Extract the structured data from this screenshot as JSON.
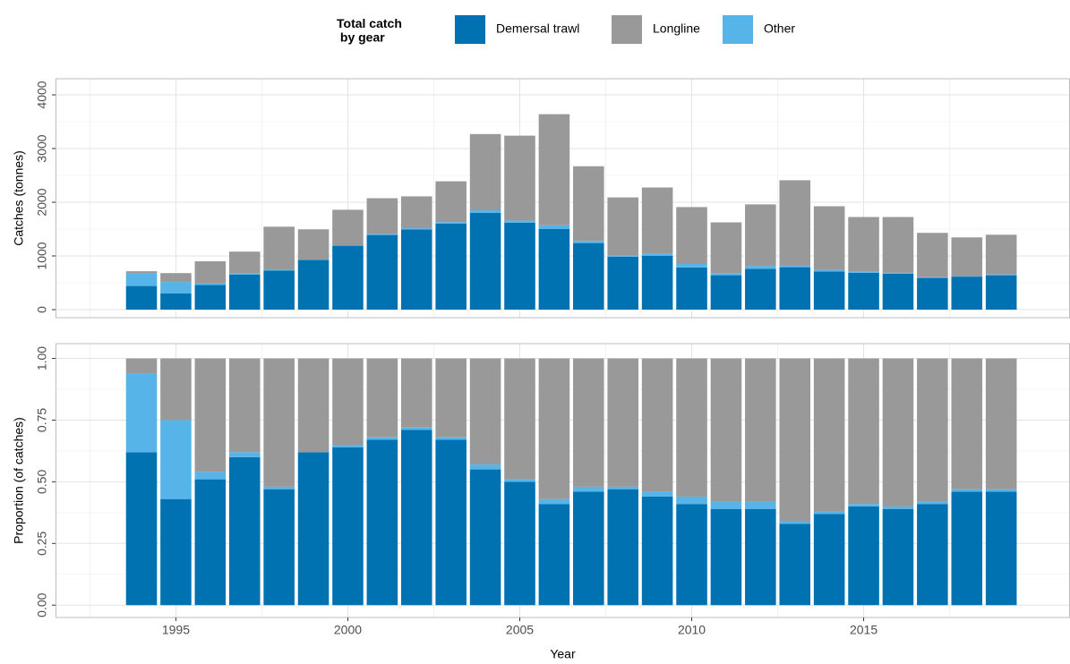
{
  "chart_data": [
    {
      "type": "bar",
      "stacked": true,
      "legend_title": "Total catch\n by gear",
      "ylabel": "Catches (tonnes)",
      "x": [
        1994,
        1995,
        1996,
        1997,
        1998,
        1999,
        2000,
        2001,
        2002,
        2003,
        2004,
        2005,
        2006,
        2007,
        2008,
        2009,
        2010,
        2011,
        2012,
        2013,
        2014,
        2015,
        2016,
        2017,
        2018,
        2019
      ],
      "series": [
        {
          "name": "Demersal trawl",
          "color": "#0072B2",
          "values": [
            440,
            300,
            460,
            650,
            725,
            925,
            1190,
            1390,
            1495,
            1605,
            1800,
            1620,
            1500,
            1240,
            985,
            1000,
            785,
            640,
            760,
            790,
            710,
            685,
            670,
            590,
            615,
            640
          ]
        },
        {
          "name": "Longline",
          "color": "#999999",
          "values": [
            45,
            165,
            410,
            410,
            805,
            565,
            660,
            665,
            595,
            760,
            1420,
            1580,
            2070,
            1390,
            1085,
            1230,
            1060,
            945,
            1145,
            1595,
            1190,
            1020,
            1040,
            825,
            720,
            740
          ]
        },
        {
          "name": "Other",
          "color": "#56B4E9",
          "values": [
            230,
            215,
            30,
            20,
            15,
            5,
            10,
            20,
            20,
            25,
            50,
            40,
            70,
            40,
            20,
            45,
            65,
            40,
            55,
            25,
            25,
            20,
            15,
            15,
            10,
            15
          ]
        }
      ],
      "xlim": [
        1991.5,
        2021
      ],
      "ylim": [
        -150,
        4300
      ],
      "yticks": [
        0,
        1000,
        2000,
        3000,
        4000
      ],
      "grid": true
    },
    {
      "type": "bar",
      "stacked": true,
      "ylabel": "Proportion (of catches)",
      "xlabel": "Year",
      "x": [
        1994,
        1995,
        1996,
        1997,
        1998,
        1999,
        2000,
        2001,
        2002,
        2003,
        2004,
        2005,
        2006,
        2007,
        2008,
        2009,
        2010,
        2011,
        2012,
        2013,
        2014,
        2015,
        2016,
        2017,
        2018,
        2019
      ],
      "series": [
        {
          "color": "#0072B2",
          "values": [
            0.62,
            0.43,
            0.51,
            0.6,
            0.47,
            0.62,
            0.64,
            0.67,
            0.71,
            0.67,
            0.55,
            0.5,
            0.41,
            0.46,
            0.47,
            0.44,
            0.41,
            0.39,
            0.39,
            0.33,
            0.37,
            0.4,
            0.39,
            0.41,
            0.46,
            0.46
          ]
        },
        {
          "color": "#999999",
          "values": [
            0.06,
            0.25,
            0.46,
            0.38,
            0.52,
            0.38,
            0.35,
            0.32,
            0.28,
            0.32,
            0.43,
            0.49,
            0.57,
            0.52,
            0.52,
            0.54,
            0.56,
            0.58,
            0.58,
            0.66,
            0.62,
            0.59,
            0.6,
            0.58,
            0.53,
            0.53
          ]
        },
        {
          "color": "#56B4E9",
          "values": [
            0.32,
            0.32,
            0.03,
            0.02,
            0.01,
            0.0,
            0.01,
            0.01,
            0.01,
            0.01,
            0.02,
            0.01,
            0.02,
            0.02,
            0.01,
            0.02,
            0.03,
            0.03,
            0.03,
            0.01,
            0.01,
            0.01,
            0.01,
            0.01,
            0.01,
            0.01
          ]
        }
      ],
      "xlim": [
        1991.5,
        2021
      ],
      "xticks": [
        1995,
        2000,
        2005,
        2010,
        2015
      ],
      "ylim": [
        -0.05,
        1.06
      ],
      "yticks": [
        {
          "value": 0,
          "label": "0.00"
        },
        {
          "value": 0.25,
          "label": "0.25"
        },
        {
          "value": 0.5,
          "label": "0.50"
        },
        {
          "value": 0.75,
          "label": "0.75"
        },
        {
          "value": 1,
          "label": "1.00"
        }
      ],
      "grid": true
    }
  ]
}
